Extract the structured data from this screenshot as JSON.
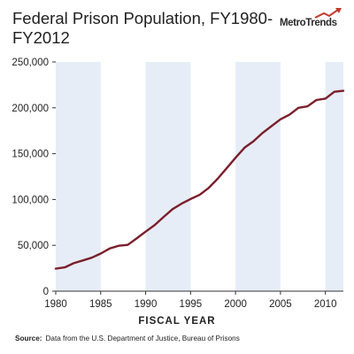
{
  "chart_data": {
    "type": "line",
    "title": "Federal Prison Population, FY1980-FY2012",
    "xlabel": "FISCAL YEAR",
    "ylabel": "",
    "xlim": [
      1980,
      2012
    ],
    "ylim": [
      0,
      250000
    ],
    "x_ticks": [
      "1980",
      "1985",
      "1990",
      "1995",
      "2000",
      "2005",
      "2010"
    ],
    "y_ticks": [
      "0",
      "50,000",
      "100,000",
      "150,000",
      "200,000",
      "250,000"
    ],
    "shaded_bands": [
      [
        1980,
        1985
      ],
      [
        1990,
        1995
      ],
      [
        2000,
        2005
      ],
      [
        2010,
        2012
      ]
    ],
    "grid": false,
    "colors": {
      "line": "#7b1f2b",
      "band": "#e6edf7",
      "axis": "#333333"
    },
    "series": [
      {
        "x": [
          1980,
          1981,
          1982,
          1983,
          1984,
          1985,
          1986,
          1987,
          1988,
          1989,
          1990,
          1991,
          1992,
          1993,
          1994,
          1995,
          1996,
          1997,
          1998,
          1999,
          2000,
          2001,
          2002,
          2003,
          2004,
          2005,
          2006,
          2007,
          2008,
          2009,
          2010,
          2011,
          2012
        ],
        "values": [
          24500,
          26000,
          30500,
          33500,
          36500,
          41000,
          46500,
          49500,
          50500,
          57500,
          65000,
          72000,
          81000,
          89500,
          95500,
          100500,
          105000,
          112500,
          122500,
          134000,
          145500,
          156500,
          163500,
          172500,
          180000,
          187500,
          192500,
          200000,
          201500,
          208500,
          210000,
          217500,
          218500
        ]
      }
    ]
  },
  "logo": {
    "text": "MetroTrends"
  },
  "source": {
    "label": "Source:",
    "text": "Data from the U.S. Department of Justice, Bureau of Prisons"
  }
}
